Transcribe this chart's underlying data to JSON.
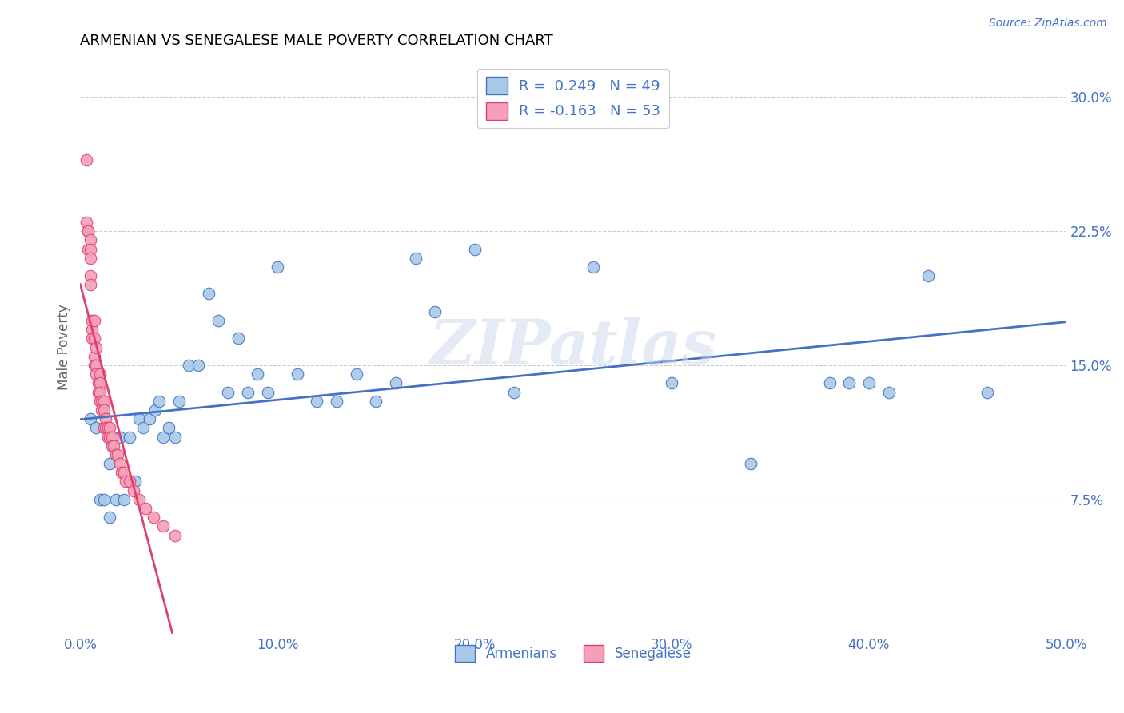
{
  "title": "ARMENIAN VS SENEGALESE MALE POVERTY CORRELATION CHART",
  "source": "Source: ZipAtlas.com",
  "ylabel": "Male Poverty",
  "x_ticks": [
    0.0,
    0.1,
    0.2,
    0.3,
    0.4,
    0.5
  ],
  "x_tick_labels": [
    "0.0%",
    "10.0%",
    "20.0%",
    "30.0%",
    "40.0%",
    "50.0%"
  ],
  "y_ticks": [
    0.075,
    0.15,
    0.225,
    0.3
  ],
  "y_tick_labels": [
    "7.5%",
    "15.0%",
    "22.5%",
    "30.0%"
  ],
  "xlim": [
    0.0,
    0.5
  ],
  "ylim": [
    0.0,
    0.32
  ],
  "armenian_R": 0.249,
  "armenian_N": 49,
  "senegalese_R": -0.163,
  "senegalese_N": 53,
  "armenian_color": "#a8c8e8",
  "armenian_line_color": "#4472c4",
  "senegalese_color": "#f4a0b8",
  "senegalese_line_color": "#e04070",
  "legend_label_armenian": "Armenians",
  "legend_label_senegalese": "Senegalese",
  "background_color": "#ffffff",
  "grid_color": "#cccccc",
  "title_color": "#000000",
  "axis_label_color": "#4472c4",
  "watermark": "ZIPatlas",
  "armenian_x": [
    0.005,
    0.008,
    0.01,
    0.012,
    0.015,
    0.015,
    0.018,
    0.02,
    0.022,
    0.025,
    0.028,
    0.03,
    0.032,
    0.035,
    0.038,
    0.04,
    0.042,
    0.045,
    0.048,
    0.05,
    0.055,
    0.06,
    0.065,
    0.07,
    0.075,
    0.08,
    0.085,
    0.09,
    0.095,
    0.1,
    0.11,
    0.12,
    0.13,
    0.14,
    0.15,
    0.16,
    0.17,
    0.18,
    0.2,
    0.22,
    0.26,
    0.3,
    0.34,
    0.38,
    0.39,
    0.4,
    0.41,
    0.43,
    0.46
  ],
  "armenian_y": [
    0.12,
    0.115,
    0.075,
    0.075,
    0.095,
    0.065,
    0.075,
    0.11,
    0.075,
    0.11,
    0.085,
    0.12,
    0.115,
    0.12,
    0.125,
    0.13,
    0.11,
    0.115,
    0.11,
    0.13,
    0.15,
    0.15,
    0.19,
    0.175,
    0.135,
    0.165,
    0.135,
    0.145,
    0.135,
    0.205,
    0.145,
    0.13,
    0.13,
    0.145,
    0.13,
    0.14,
    0.21,
    0.18,
    0.215,
    0.135,
    0.205,
    0.14,
    0.095,
    0.14,
    0.14,
    0.14,
    0.135,
    0.2,
    0.135
  ],
  "senegalese_x": [
    0.003,
    0.003,
    0.004,
    0.004,
    0.004,
    0.005,
    0.005,
    0.005,
    0.005,
    0.005,
    0.006,
    0.006,
    0.006,
    0.007,
    0.007,
    0.007,
    0.007,
    0.008,
    0.008,
    0.008,
    0.009,
    0.009,
    0.01,
    0.01,
    0.01,
    0.01,
    0.011,
    0.011,
    0.012,
    0.012,
    0.012,
    0.013,
    0.013,
    0.014,
    0.014,
    0.015,
    0.015,
    0.016,
    0.016,
    0.017,
    0.018,
    0.019,
    0.02,
    0.021,
    0.022,
    0.023,
    0.025,
    0.027,
    0.03,
    0.033,
    0.037,
    0.042,
    0.048
  ],
  "senegalese_y": [
    0.265,
    0.23,
    0.225,
    0.215,
    0.225,
    0.22,
    0.215,
    0.21,
    0.2,
    0.195,
    0.175,
    0.17,
    0.165,
    0.175,
    0.165,
    0.155,
    0.15,
    0.16,
    0.15,
    0.145,
    0.14,
    0.135,
    0.145,
    0.14,
    0.135,
    0.13,
    0.13,
    0.125,
    0.13,
    0.125,
    0.115,
    0.12,
    0.115,
    0.115,
    0.11,
    0.115,
    0.11,
    0.11,
    0.105,
    0.105,
    0.1,
    0.1,
    0.095,
    0.09,
    0.09,
    0.085,
    0.085,
    0.08,
    0.075,
    0.07,
    0.065,
    0.06,
    0.055
  ]
}
